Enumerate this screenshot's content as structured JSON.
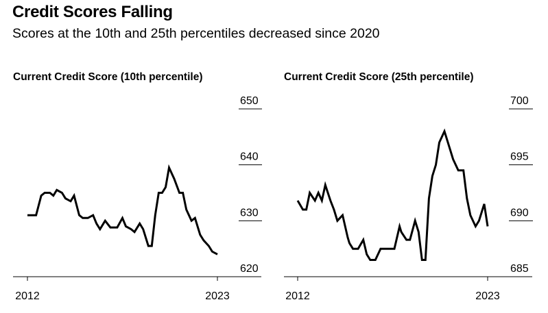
{
  "title": "Credit Scores Falling",
  "subtitle": "Scores at the 10th and 25th percentiles decreased since 2020",
  "chart_data": [
    {
      "type": "line",
      "title": "Current Credit Score (10th percentile)",
      "x_tick_labels": [
        "2012",
        "2023"
      ],
      "y_ticks": [
        620,
        630,
        640,
        650
      ],
      "y_tick_labels": [
        "620",
        "630",
        "640",
        "650"
      ],
      "ylim": [
        620,
        650
      ],
      "xlim": [
        2012,
        2023
      ],
      "line_color": "#000000",
      "series": [
        {
          "x": [
            2012.0,
            2012.5,
            2012.8,
            2013.0,
            2013.3,
            2013.5,
            2013.7,
            2014.0,
            2014.2,
            2014.5,
            2014.7,
            2015.0,
            2015.2,
            2015.5,
            2015.8,
            2016.0,
            2016.2,
            2016.5,
            2016.8,
            2017.0,
            2017.2,
            2017.5,
            2017.7,
            2018.0,
            2018.2,
            2018.5,
            2018.7,
            2019.0,
            2019.2,
            2019.4,
            2019.6,
            2019.8,
            2020.0,
            2020.2,
            2020.5,
            2020.8,
            2021.0,
            2021.2,
            2021.5,
            2021.7,
            2022.0,
            2022.2,
            2022.5,
            2022.7,
            2023.0
          ],
          "y": [
            631.0,
            631.0,
            634.5,
            635.0,
            635.0,
            634.5,
            635.5,
            635.0,
            634.0,
            633.5,
            634.5,
            631.0,
            630.5,
            630.5,
            631.0,
            629.5,
            628.5,
            630.0,
            628.8,
            628.8,
            628.8,
            630.5,
            629.0,
            628.5,
            628.0,
            629.5,
            628.5,
            625.5,
            625.5,
            631.0,
            635.0,
            635.0,
            636.0,
            639.5,
            637.5,
            635.0,
            635.0,
            632.0,
            630.0,
            630.5,
            627.5,
            626.5,
            625.5,
            624.5,
            624.0
          ]
        }
      ]
    },
    {
      "type": "line",
      "title": "Current Credit Score (25th percentile)",
      "x_tick_labels": [
        "2012",
        "2023"
      ],
      "y_ticks": [
        685,
        690,
        695,
        700
      ],
      "y_tick_labels": [
        "685",
        "690",
        "695",
        "700"
      ],
      "ylim": [
        685,
        700
      ],
      "xlim": [
        2012,
        2023
      ],
      "line_color": "#000000",
      "series": [
        {
          "x": [
            2012.0,
            2012.3,
            2012.5,
            2012.7,
            2013.0,
            2013.2,
            2013.4,
            2013.6,
            2013.9,
            2014.1,
            2014.3,
            2014.6,
            2014.9,
            2015.0,
            2015.2,
            2015.5,
            2015.8,
            2016.0,
            2016.2,
            2016.5,
            2016.8,
            2017.0,
            2017.3,
            2017.6,
            2017.9,
            2018.0,
            2018.3,
            2018.5,
            2018.8,
            2019.0,
            2019.2,
            2019.4,
            2019.6,
            2019.8,
            2020.0,
            2020.2,
            2020.5,
            2020.8,
            2021.0,
            2021.3,
            2021.6,
            2021.8,
            2022.0,
            2022.3,
            2022.5,
            2022.8,
            2023.0
          ],
          "y": [
            691.8,
            691.0,
            691.0,
            692.5,
            691.8,
            692.5,
            691.8,
            693.2,
            691.8,
            691.0,
            690.0,
            690.5,
            688.5,
            688.0,
            687.5,
            687.5,
            688.3,
            687.0,
            686.5,
            686.5,
            687.5,
            687.5,
            687.5,
            687.5,
            689.5,
            689.0,
            688.3,
            688.3,
            690.0,
            689.0,
            686.5,
            686.5,
            692.0,
            694.0,
            695.0,
            697.0,
            698.0,
            696.5,
            695.5,
            694.5,
            694.5,
            692.0,
            690.5,
            689.5,
            690.0,
            691.5,
            689.5
          ]
        }
      ]
    }
  ]
}
